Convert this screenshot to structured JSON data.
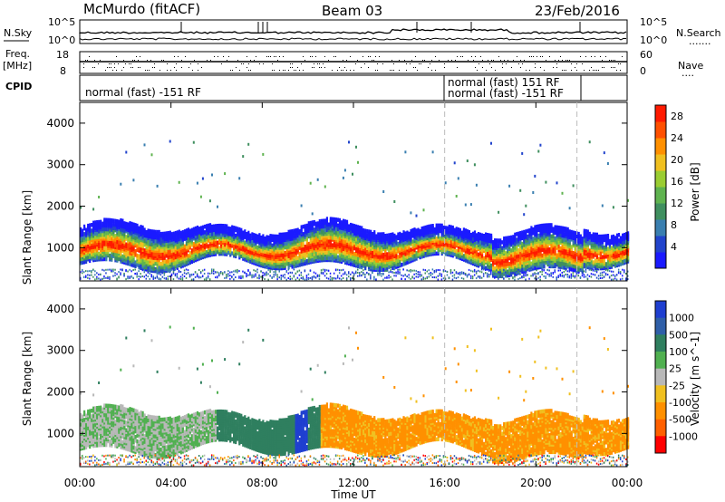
{
  "header": {
    "station": "McMurdo (fitACF)",
    "beam": "Beam 03",
    "date": "23/Feb/2016"
  },
  "colors": {
    "power": [
      "#1a1aff",
      "#2244cc",
      "#3a7fb0",
      "#3f8f5f",
      "#5fb34f",
      "#9acd32",
      "#f0c020",
      "#ff9000",
      "#ff5000",
      "#ff1a00"
    ],
    "velocity": [
      "#1f3fd0",
      "#2f5fa8",
      "#2f7f5f",
      "#50b050",
      "#b8b8b8",
      "#f0c020",
      "#ff9000",
      "#ff6000",
      "#ff0000"
    ]
  },
  "aux": {
    "nsky_label": "N.Sky",
    "nsearch_label": "N.Search",
    "freq_label": "Freq.",
    "freq_unit": "[MHz]",
    "cpid_label": "CPID",
    "nave_label": "Nave",
    "left_ticks_top": [
      "10^5",
      "10^0"
    ],
    "right_ticks_top": [
      "10^5",
      "10^0"
    ],
    "freq_ticks": [
      "18",
      "8"
    ],
    "nave_ticks": [
      "60",
      "0"
    ],
    "cpid_segments": [
      {
        "text": "normal (fast) -151 RF"
      },
      {
        "text": "normal (fast) 151 RF"
      },
      {
        "text": "normal (fast) -151 RF"
      }
    ]
  },
  "chart_data": [
    {
      "type": "heatmap",
      "name": "power",
      "ylabel": "Slant Range [km]",
      "xlabel": "",
      "x_ticks": [
        "00:00",
        "04:00",
        "08:00",
        "12:00",
        "16:00",
        "20:00",
        "00:00"
      ],
      "y_ticks": [
        1000,
        2000,
        3000,
        4000
      ],
      "xlim": [
        0,
        24
      ],
      "ylim": [
        200,
        4500
      ],
      "colorbar": {
        "label": "Power [dB]",
        "ticks": [
          "4",
          "8",
          "12",
          "16",
          "20",
          "24",
          "28"
        ],
        "range": [
          0,
          30
        ]
      },
      "cpid_change_hours": [
        16.0,
        21.8
      ]
    },
    {
      "type": "heatmap",
      "name": "velocity",
      "ylabel": "Slant Range [km]",
      "xlabel": "Time UT",
      "x_ticks": [
        "00:00",
        "04:00",
        "08:00",
        "12:00",
        "16:00",
        "20:00",
        "00:00"
      ],
      "y_ticks": [
        1000,
        2000,
        3000,
        4000
      ],
      "xlim": [
        0,
        24
      ],
      "ylim": [
        200,
        4500
      ],
      "colorbar": {
        "label": "Velocity [m s^-1]",
        "ticks": [
          "1000",
          "500",
          "100",
          "25",
          "-25",
          "-100",
          "-500",
          "-1000"
        ]
      },
      "cpid_change_hours": [
        16.0,
        21.8
      ]
    }
  ]
}
